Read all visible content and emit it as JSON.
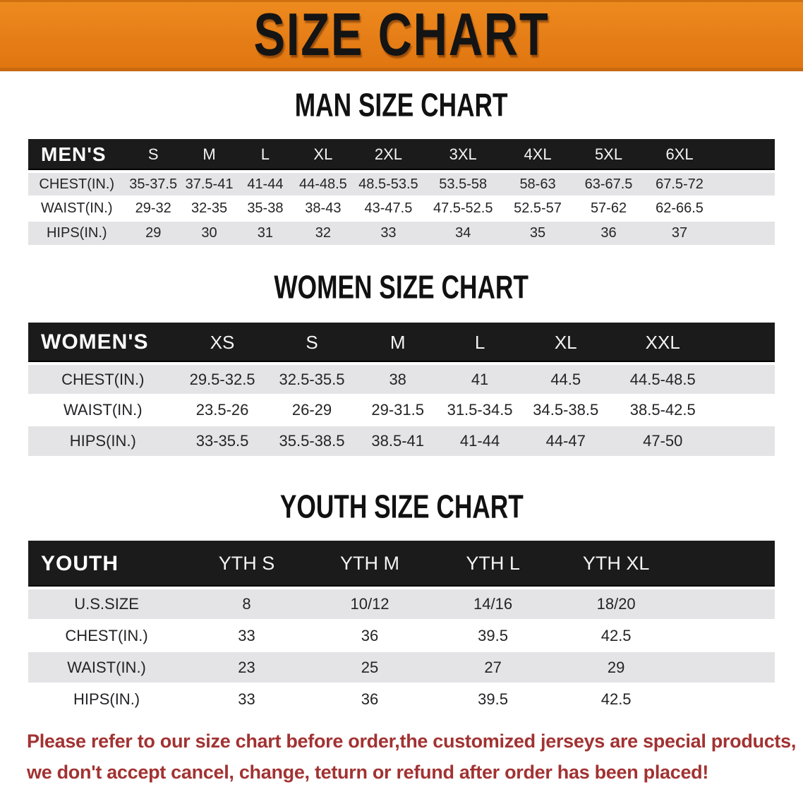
{
  "banner": {
    "title": "SIZE CHART"
  },
  "sections": [
    {
      "title": "MAN SIZE CHART",
      "table": {
        "header_label": "MEN'S",
        "columns": [
          "S",
          "M",
          "L",
          "XL",
          "2XL",
          "3XL",
          "4XL",
          "5XL",
          "6XL"
        ],
        "rows": [
          {
            "label": "CHEST(IN.)",
            "values": [
              "35-37.5",
              "37.5-41",
              "41-44",
              "44-48.5",
              "48.5-53.5",
              "53.5-58",
              "58-63",
              "63-67.5",
              "67.5-72"
            ]
          },
          {
            "label": "WAIST(IN.)",
            "values": [
              "29-32",
              "32-35",
              "35-38",
              "38-43",
              "43-47.5",
              "47.5-52.5",
              "52.5-57",
              "57-62",
              "62-66.5"
            ]
          },
          {
            "label": "HIPS(IN.)",
            "values": [
              "29",
              "30",
              "31",
              "32",
              "33",
              "34",
              "35",
              "36",
              "37"
            ]
          }
        ]
      }
    },
    {
      "title": "WOMEN SIZE CHART",
      "table": {
        "header_label": "WOMEN'S",
        "columns": [
          "XS",
          "S",
          "M",
          "L",
          "XL",
          "XXL"
        ],
        "rows": [
          {
            "label": "CHEST(IN.)",
            "values": [
              "29.5-32.5",
              "32.5-35.5",
              "38",
              "41",
              "44.5",
              "44.5-48.5"
            ]
          },
          {
            "label": "WAIST(IN.)",
            "values": [
              "23.5-26",
              "26-29",
              "29-31.5",
              "31.5-34.5",
              "34.5-38.5",
              "38.5-42.5"
            ]
          },
          {
            "label": "HIPS(IN.)",
            "values": [
              "33-35.5",
              "35.5-38.5",
              "38.5-41",
              "41-44",
              "44-47",
              "47-50"
            ]
          }
        ]
      }
    },
    {
      "title": "YOUTH SIZE CHART",
      "table": {
        "header_label": "YOUTH",
        "columns": [
          "YTH S",
          "YTH M",
          "YTH L",
          "YTH XL"
        ],
        "rows": [
          {
            "label": "U.S.SIZE",
            "values": [
              "8",
              "10/12",
              "14/16",
              "18/20"
            ]
          },
          {
            "label": "CHEST(IN.)",
            "values": [
              "33",
              "36",
              "39.5",
              "42.5"
            ]
          },
          {
            "label": "WAIST(IN.)",
            "values": [
              "23",
              "25",
              "27",
              "29"
            ]
          },
          {
            "label": "HIPS(IN.)",
            "values": [
              "33",
              "36",
              "39.5",
              "42.5"
            ]
          }
        ]
      }
    }
  ],
  "disclaimer": {
    "line1": "Please refer to our size chart before order,the customized jerseys are special products,",
    "line2": "we don't accept cancel, change, teturn or refund after order has been placed!"
  },
  "colors": {
    "banner_bg": "#E67E17",
    "banner_border": "#C76A10",
    "table_header_bg": "#1B1B1B",
    "row_stripe": "#E4E4E6",
    "title_text": "#111111",
    "disclaimer_text": "#A23232"
  }
}
